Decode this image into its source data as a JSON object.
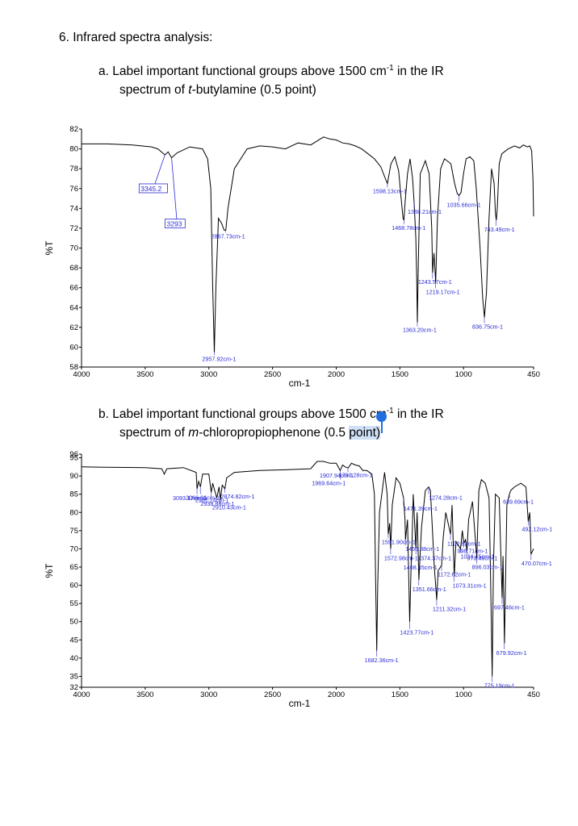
{
  "question": {
    "heading": "6.  Infrared spectra analysis:",
    "a_line1_pre": "a.  Label important functional groups above 1500 cm",
    "a_sup": "-1",
    "a_line1_post": " in the IR",
    "a_line2_pre": "spectrum of ",
    "a_line2_italic": "t",
    "a_line2_post": "-butylamine (0.5 point)",
    "b_line1_pre": "b.  Label important functional groups above 1500 cm",
    "b_sup": "-1",
    "b_line1_post": " in the IR",
    "b_line2_pre": "spectrum of ",
    "b_line2_italic": "m",
    "b_line2_mid": "-chloropropiophenone (0.5 ",
    "b_line2_sel": "point)"
  },
  "colors": {
    "peak_label": "#2b2bd6",
    "trace": "#000000",
    "cursor": "#1f6fe0",
    "selection": "#cfe0f7"
  },
  "chart_data": [
    {
      "type": "line",
      "xlabel": "cm-1",
      "ylabel": "%T",
      "xlim": [
        4000,
        450
      ],
      "ylim": [
        58,
        82
      ],
      "x_ticks": [
        4000,
        3500,
        3000,
        2500,
        2000,
        1500,
        1000,
        450
      ],
      "y_ticks": [
        58,
        60,
        62,
        64,
        66,
        68,
        70,
        72,
        74,
        76,
        78,
        80,
        82
      ],
      "series": [
        {
          "x": [
            4000,
            3800,
            3600,
            3450,
            3400,
            3345,
            3320,
            3293,
            3250,
            3150,
            3050,
            3010,
            2985,
            2970,
            2957,
            2945,
            2925,
            2900,
            2880,
            2867,
            2850,
            2800,
            2700,
            2600,
            2500,
            2400,
            2300,
            2200,
            2150,
            2100,
            2050,
            2000,
            1950,
            1900,
            1850,
            1800,
            1750,
            1700,
            1650,
            1620,
            1598,
            1570,
            1540,
            1510,
            1490,
            1475,
            1468,
            1460,
            1440,
            1420,
            1400,
            1388,
            1375,
            1368,
            1363,
            1355,
            1340,
            1300,
            1270,
            1250,
            1243,
            1232,
            1225,
            1219,
            1205,
            1180,
            1150,
            1100,
            1070,
            1050,
            1035,
            1020,
            1000,
            980,
            950,
            920,
            900,
            870,
            850,
            836,
            820,
            800,
            780,
            760,
            750,
            743,
            735,
            720,
            700,
            650,
            600,
            560,
            530,
            500,
            480,
            465,
            455,
            450
          ],
          "y": [
            80.5,
            80.5,
            80.4,
            80.2,
            80.0,
            79.4,
            79.7,
            79.1,
            79.6,
            80.2,
            80.0,
            79.0,
            76.0,
            66.0,
            59.5,
            66.0,
            73.0,
            72.5,
            71.8,
            71.8,
            74.0,
            78.0,
            80.0,
            80.3,
            80.2,
            80.0,
            80.6,
            80.4,
            80.8,
            81.2,
            81.0,
            80.9,
            80.6,
            80.5,
            80.3,
            80.0,
            79.5,
            79.0,
            78.2,
            77.2,
            76.5,
            78.5,
            79.2,
            77.8,
            75.0,
            73.0,
            72.8,
            74.5,
            77.5,
            79.0,
            77.0,
            74.6,
            71.0,
            67.0,
            62.5,
            68.5,
            77.5,
            78.8,
            77.5,
            72.0,
            67.5,
            69.5,
            68.0,
            66.5,
            73.0,
            78.0,
            79.0,
            78.5,
            76.5,
            75.5,
            75.3,
            75.6,
            77.5,
            79.0,
            79.2,
            78.8,
            76.0,
            70.0,
            65.0,
            63.0,
            65.5,
            73.0,
            78.0,
            76.5,
            73.5,
            72.8,
            74.0,
            78.5,
            79.5,
            80.0,
            80.3,
            80.1,
            80.4,
            80.2,
            80.3,
            79.8,
            77.0,
            73.2
          ]
        }
      ],
      "peak_labels": [
        {
          "label": "3345.2",
          "x": 3345.2,
          "y": 79.4,
          "boxed": true
        },
        {
          "label": "3293",
          "x": 3293,
          "y": 79.1,
          "boxed": true
        },
        {
          "label": "2957.92cm-1",
          "x": 2957.92,
          "y": 59.5
        },
        {
          "label": "2867.73cm-1",
          "x": 2867.73,
          "y": 71.8
        },
        {
          "label": "1598.13cm-1",
          "x": 1598.13,
          "y": 76.5
        },
        {
          "label": "1468.78cm-1",
          "x": 1468.78,
          "y": 72.8
        },
        {
          "label": "1388.21cm-1",
          "x": 1388.21,
          "y": 74.6
        },
        {
          "label": "1363.20cm-1",
          "x": 1363.2,
          "y": 62.5
        },
        {
          "label": "1243.57cm-1",
          "x": 1243.57,
          "y": 67.5
        },
        {
          "label": "1219.17cm-1",
          "x": 1219.17,
          "y": 66.5
        },
        {
          "label": "1035.66cm-1",
          "x": 1035.66,
          "y": 75.3
        },
        {
          "label": "836.75cm-1",
          "x": 836.75,
          "y": 63.0
        },
        {
          "label": "743.49cm-1",
          "x": 743.49,
          "y": 72.8
        }
      ]
    },
    {
      "type": "line",
      "xlabel": "cm-1",
      "ylabel": "%T",
      "xlim": [
        4000,
        450
      ],
      "ylim": [
        32,
        96
      ],
      "x_ticks": [
        4000,
        3500,
        3000,
        2500,
        2000,
        1500,
        1000,
        450
      ],
      "y_ticks": [
        32,
        35,
        40,
        45,
        50,
        55,
        60,
        65,
        70,
        75,
        80,
        85,
        90,
        95,
        96
      ],
      "series": [
        {
          "x": [
            4000,
            3800,
            3500,
            3370,
            3350,
            3330,
            3200,
            3100,
            3093,
            3080,
            3066,
            3050,
            3000,
            2981,
            2970,
            2938,
            2920,
            2910,
            2895,
            2874,
            2860,
            2800,
            2600,
            2400,
            2200,
            2150,
            2100,
            2050,
            2000,
            1969,
            1950,
            1930,
            1907,
            1880,
            1850,
            1820,
            1790,
            1760,
            1720,
            1700,
            1690,
            1682,
            1674,
            1660,
            1620,
            1600,
            1591,
            1580,
            1572,
            1560,
            1530,
            1500,
            1471,
            1460,
            1456,
            1440,
            1423,
            1410,
            1408,
            1395,
            1374,
            1365,
            1351,
            1330,
            1300,
            1274,
            1260,
            1230,
            1211,
            1200,
            1172,
            1160,
            1140,
            1102,
            1090,
            1073,
            1060,
            1024,
            1010,
            998,
            985,
            973,
            960,
            930,
            896,
            880,
            860,
            830,
            800,
            790,
            775,
            765,
            750,
            720,
            697,
            690,
            679,
            670,
            660,
            640,
            630,
            600,
            550,
            510,
            492,
            480,
            470,
            450
          ],
          "y": [
            92.5,
            92.4,
            92.3,
            92.0,
            90.5,
            92.0,
            92.3,
            91.0,
            86.5,
            88.5,
            87.0,
            90.5,
            90.5,
            85.5,
            88.0,
            84.0,
            87.0,
            83.5,
            87.5,
            86.5,
            89.5,
            91.0,
            91.5,
            91.7,
            92.0,
            94.0,
            94.0,
            93.5,
            93.5,
            91.5,
            93.0,
            92.5,
            92.2,
            93.5,
            93.0,
            92.8,
            91.5,
            91.5,
            90.5,
            85.0,
            60.0,
            42.0,
            60.0,
            80.0,
            91.0,
            85.0,
            74.0,
            77.0,
            70.0,
            82.0,
            89.5,
            88.0,
            84.0,
            78.0,
            72.5,
            78.0,
            50.0,
            68.0,
            67.0,
            85.0,
            70.0,
            80.0,
            61.5,
            76.0,
            86.0,
            87.0,
            86.0,
            65.0,
            56.0,
            64.0,
            65.5,
            73.0,
            80.0,
            74.0,
            82.0,
            62.5,
            72.0,
            70.0,
            75.0,
            71.5,
            72.5,
            69.5,
            78.0,
            83.0,
            67.5,
            86.0,
            89.0,
            88.0,
            84.0,
            66.0,
            35.0,
            66.0,
            85.0,
            84.0,
            56.5,
            68.0,
            44.0,
            62.0,
            82.0,
            85.0,
            86.0,
            87.0,
            88.0,
            87.0,
            77.5,
            80.0,
            68.5,
            70.0
          ]
        }
      ],
      "peak_labels": [
        {
          "label": "3066.86cm-1",
          "x": 3066.86,
          "y": 87.0
        },
        {
          "label": "3093.17cm-1",
          "x": 3093.17,
          "y": 86.5
        },
        {
          "label": "2874.82cm-1",
          "x": 2874.82,
          "y": 86.5
        },
        {
          "label": "2981.24cm-1",
          "x": 2981.24,
          "y": 85.5
        },
        {
          "label": "2938.88cm-1",
          "x": 2938.88,
          "y": 84.0
        },
        {
          "label": "2910.43cm-1",
          "x": 2910.43,
          "y": 83.5
        },
        {
          "label": "1969.64cm-1",
          "x": 1969.64,
          "y": 91.5
        },
        {
          "label": "1907.94cm-1",
          "x": 1907.94,
          "y": 92.2
        },
        {
          "label": "1790.28cm-1",
          "x": 1790.28,
          "y": 91.5
        },
        {
          "label": "1682.36cm-1",
          "x": 1682.36,
          "y": 42.0
        },
        {
          "label": "1591.90cm-1",
          "x": 1591.9,
          "y": 74.0
        },
        {
          "label": "1572.98cm-1",
          "x": 1572.98,
          "y": 70.0
        },
        {
          "label": "1471.39cm-1",
          "x": 1471.39,
          "y": 84.0
        },
        {
          "label": "1456.88cm-1",
          "x": 1456.88,
          "y": 72.5
        },
        {
          "label": "1423.77cm-1",
          "x": 1423.77,
          "y": 50.0
        },
        {
          "label": "1408.45cm-1",
          "x": 1408.45,
          "y": 67.0
        },
        {
          "label": "1374.37cm-1",
          "x": 1374.37,
          "y": 70.0
        },
        {
          "label": "1351.66cm-1",
          "x": 1351.66,
          "y": 61.5
        },
        {
          "label": "1274.28cm-1",
          "x": 1274.28,
          "y": 87.0
        },
        {
          "label": "1211.32cm-1",
          "x": 1211.32,
          "y": 56.0
        },
        {
          "label": "1172.62cm-1",
          "x": 1172.62,
          "y": 65.5
        },
        {
          "label": "1102.82cm-1",
          "x": 1102.82,
          "y": 74.0
        },
        {
          "label": "1073.31cm-1",
          "x": 1073.31,
          "y": 62.5
        },
        {
          "label": "998.71cm-1",
          "x": 998.71,
          "y": 71.5
        },
        {
          "label": "1024.45cm-1",
          "x": 1024.45,
          "y": 70.0
        },
        {
          "label": "973.46cm-1",
          "x": 973.46,
          "y": 69.5
        },
        {
          "label": "896.03cm-1",
          "x": 896.03,
          "y": 67.5
        },
        {
          "label": "775.19cm-1",
          "x": 775.19,
          "y": 35.0
        },
        {
          "label": "697.46cm-1",
          "x": 697.46,
          "y": 56.5
        },
        {
          "label": "679.92cm-1",
          "x": 679.92,
          "y": 44.0
        },
        {
          "label": "639.69cm-1",
          "x": 639.69,
          "y": 85.0
        },
        {
          "label": "492.12cm-1",
          "x": 492.12,
          "y": 77.5
        },
        {
          "label": "470.07cm-1",
          "x": 470.07,
          "y": 68.5
        }
      ]
    }
  ]
}
